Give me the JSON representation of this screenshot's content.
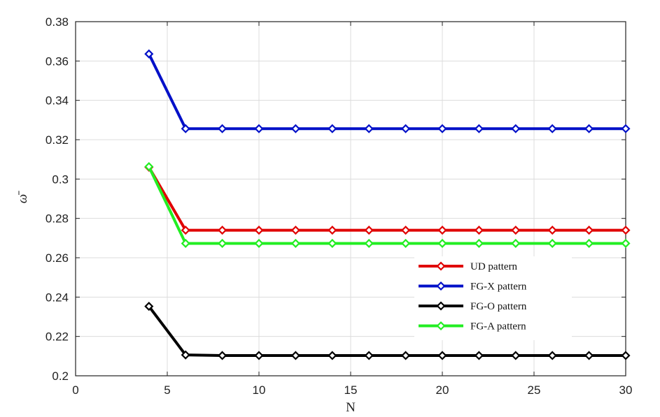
{
  "chart_data": {
    "type": "line",
    "xlabel": "N",
    "ylabel": "ω̄",
    "xlim": [
      0,
      30
    ],
    "ylim": [
      0.2,
      0.38
    ],
    "xticks": [
      0,
      5,
      10,
      15,
      20,
      25,
      30
    ],
    "xtick_labels": [
      "0",
      "5",
      "10",
      "15",
      "20",
      "25",
      "30"
    ],
    "yticks": [
      0.2,
      0.22,
      0.24,
      0.26,
      0.28,
      0.3,
      0.32,
      0.34,
      0.36,
      0.38
    ],
    "ytick_labels": [
      "0.2",
      "0.22",
      "0.24",
      "0.26",
      "0.28",
      "0.3",
      "0.32",
      "0.34",
      "0.36",
      "0.38"
    ],
    "grid": true,
    "legend_position": "lower-right",
    "x": [
      4,
      6,
      8,
      10,
      12,
      14,
      16,
      18,
      20,
      22,
      24,
      26,
      28,
      30
    ],
    "series": [
      {
        "name": "UD pattern",
        "color": "#e00000",
        "marker": "diamond",
        "values": [
          0.306,
          0.274,
          0.274,
          0.274,
          0.274,
          0.274,
          0.274,
          0.274,
          0.274,
          0.274,
          0.274,
          0.274,
          0.274,
          0.274
        ]
      },
      {
        "name": "FG-X pattern",
        "color": "#0010c8",
        "marker": "diamond",
        "values": [
          0.3636,
          0.3256,
          0.3256,
          0.3256,
          0.3256,
          0.3256,
          0.3256,
          0.3256,
          0.3256,
          0.3256,
          0.3256,
          0.3256,
          0.3256,
          0.3256
        ]
      },
      {
        "name": "FG-O pattern",
        "color": "#000000",
        "marker": "diamond",
        "values": [
          0.2353,
          0.2106,
          0.2103,
          0.2103,
          0.2103,
          0.2103,
          0.2103,
          0.2103,
          0.2103,
          0.2103,
          0.2103,
          0.2103,
          0.2103,
          0.2103
        ]
      },
      {
        "name": "FG-A pattern",
        "color": "#22ee22",
        "marker": "diamond",
        "values": [
          0.3063,
          0.2673,
          0.2673,
          0.2673,
          0.2673,
          0.2673,
          0.2673,
          0.2673,
          0.2673,
          0.2673,
          0.2673,
          0.2673,
          0.2673,
          0.2673
        ]
      }
    ]
  }
}
